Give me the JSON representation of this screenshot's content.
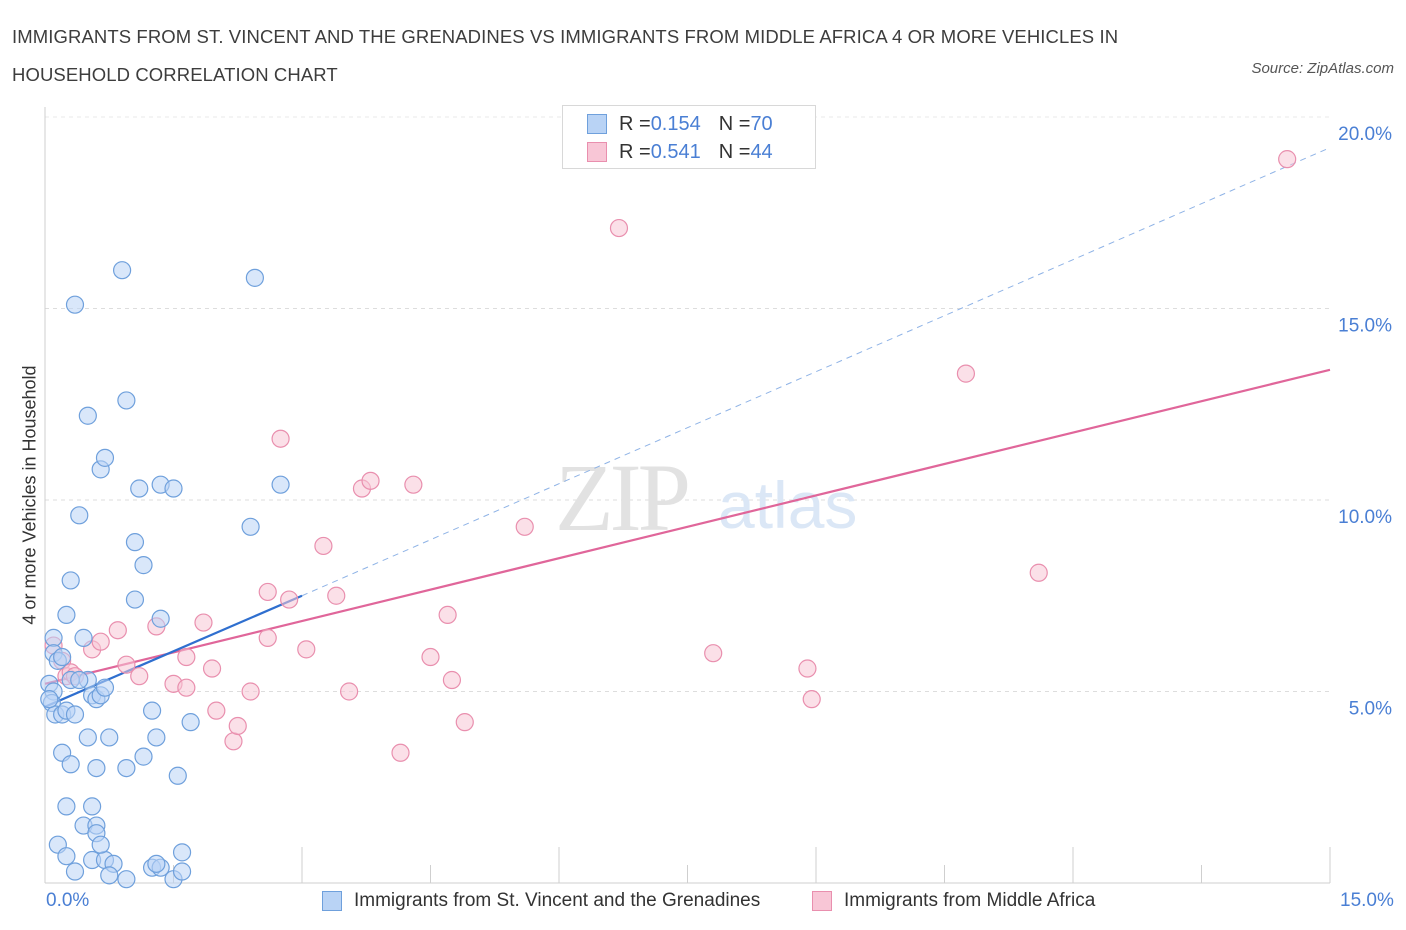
{
  "title": "IMMIGRANTS FROM ST. VINCENT AND THE GRENADINES VS IMMIGRANTS FROM MIDDLE AFRICA 4 OR MORE VEHICLES IN HOUSEHOLD CORRELATION CHART",
  "source": "Source: ZipAtlas.com",
  "watermark": {
    "zip": "ZIP",
    "atlas": "atlas"
  },
  "colors": {
    "blue_fill": "#b9d3f5",
    "blue_stroke": "#6fa0dc",
    "blue_line": "#2f6fcf",
    "pink_fill": "#f8c6d6",
    "pink_stroke": "#e98fae",
    "pink_line": "#e0669a",
    "tick_text": "#4a7fd4",
    "grid": "#dddddd"
  },
  "legend_top": [
    {
      "r_label": "R = ",
      "r_value": "0.154",
      "n_label": "N = ",
      "n_value": "70"
    },
    {
      "r_label": "R = ",
      "r_value": "0.541",
      "n_label": "N = ",
      "n_value": "44"
    }
  ],
  "chart_data": {
    "type": "scatter",
    "xlabel": "",
    "ylabel": "4 or more Vehicles in Household",
    "xlim": [
      0,
      15
    ],
    "ylim": [
      0,
      20
    ],
    "x_tick_labels": [
      "0.0%",
      "15.0%"
    ],
    "y_ticks": [
      5,
      10,
      15,
      20
    ],
    "y_tick_labels": [
      "5.0%",
      "10.0%",
      "15.0%",
      "20.0%"
    ],
    "grid": true,
    "legend": "bottom",
    "series": [
      {
        "name": "Immigrants from St. Vincent and the Grenadines",
        "R": 0.154,
        "N": 70,
        "trend": {
          "x0": 0,
          "y0": 4.6,
          "x1": 3.0,
          "y1": 7.5,
          "dashed_to_x": 15,
          "dashed_to_y": 19.2
        },
        "points": [
          [
            0.1,
            6.4
          ],
          [
            0.1,
            6.0
          ],
          [
            0.15,
            5.8
          ],
          [
            0.2,
            5.9
          ],
          [
            0.05,
            5.2
          ],
          [
            0.1,
            5.0
          ],
          [
            0.08,
            4.7
          ],
          [
            0.12,
            4.4
          ],
          [
            0.2,
            4.4
          ],
          [
            0.25,
            4.5
          ],
          [
            0.3,
            5.3
          ],
          [
            0.35,
            4.4
          ],
          [
            0.45,
            6.4
          ],
          [
            0.5,
            5.3
          ],
          [
            0.55,
            4.9
          ],
          [
            0.6,
            4.8
          ],
          [
            0.65,
            4.9
          ],
          [
            0.7,
            5.1
          ],
          [
            0.25,
            7.0
          ],
          [
            0.3,
            7.9
          ],
          [
            0.35,
            15.1
          ],
          [
            0.5,
            12.2
          ],
          [
            0.65,
            10.8
          ],
          [
            0.7,
            11.1
          ],
          [
            0.9,
            16.0
          ],
          [
            0.95,
            12.6
          ],
          [
            1.05,
            8.9
          ],
          [
            1.1,
            10.3
          ],
          [
            1.05,
            7.4
          ],
          [
            1.15,
            8.3
          ],
          [
            1.35,
            10.4
          ],
          [
            1.5,
            10.3
          ],
          [
            1.35,
            6.9
          ],
          [
            1.7,
            4.2
          ],
          [
            2.45,
            15.8
          ],
          [
            2.4,
            9.3
          ],
          [
            2.75,
            10.4
          ],
          [
            0.4,
            9.6
          ],
          [
            0.2,
            3.4
          ],
          [
            0.5,
            3.8
          ],
          [
            0.3,
            3.1
          ],
          [
            0.6,
            3.0
          ],
          [
            0.75,
            3.8
          ],
          [
            0.95,
            3.0
          ],
          [
            1.3,
            3.8
          ],
          [
            1.15,
            3.3
          ],
          [
            1.55,
            2.8
          ],
          [
            1.25,
            4.5
          ],
          [
            0.25,
            2.0
          ],
          [
            0.55,
            2.0
          ],
          [
            0.45,
            1.5
          ],
          [
            0.6,
            1.5
          ],
          [
            0.15,
            1.0
          ],
          [
            0.6,
            1.3
          ],
          [
            0.25,
            0.7
          ],
          [
            0.55,
            0.6
          ],
          [
            0.7,
            0.6
          ],
          [
            0.8,
            0.5
          ],
          [
            0.35,
            0.3
          ],
          [
            0.75,
            0.2
          ],
          [
            0.95,
            0.1
          ],
          [
            1.25,
            0.4
          ],
          [
            1.35,
            0.4
          ],
          [
            1.5,
            0.1
          ],
          [
            1.6,
            0.3
          ],
          [
            1.6,
            0.8
          ],
          [
            1.3,
            0.5
          ],
          [
            0.65,
            1.0
          ],
          [
            0.4,
            5.3
          ],
          [
            0.05,
            4.8
          ]
        ]
      },
      {
        "name": "Immigrants from Middle Africa",
        "R": 0.541,
        "N": 44,
        "trend": {
          "x0": 0,
          "y0": 5.2,
          "x1": 15,
          "y1": 13.4
        },
        "points": [
          [
            0.1,
            6.2
          ],
          [
            0.2,
            5.8
          ],
          [
            0.25,
            5.4
          ],
          [
            0.3,
            5.5
          ],
          [
            0.35,
            5.4
          ],
          [
            0.55,
            6.1
          ],
          [
            0.65,
            6.3
          ],
          [
            0.85,
            6.6
          ],
          [
            0.95,
            5.7
          ],
          [
            1.1,
            5.4
          ],
          [
            1.3,
            6.7
          ],
          [
            1.5,
            5.2
          ],
          [
            1.65,
            5.1
          ],
          [
            1.65,
            5.9
          ],
          [
            1.85,
            6.8
          ],
          [
            1.95,
            5.6
          ],
          [
            2.0,
            4.5
          ],
          [
            2.2,
            3.7
          ],
          [
            2.25,
            4.1
          ],
          [
            2.4,
            5.0
          ],
          [
            2.6,
            6.4
          ],
          [
            2.6,
            7.6
          ],
          [
            2.85,
            7.4
          ],
          [
            3.05,
            6.1
          ],
          [
            3.25,
            8.8
          ],
          [
            3.4,
            7.5
          ],
          [
            3.55,
            5.0
          ],
          [
            3.7,
            10.3
          ],
          [
            3.8,
            10.5
          ],
          [
            4.3,
            10.4
          ],
          [
            4.15,
            3.4
          ],
          [
            4.5,
            5.9
          ],
          [
            4.7,
            7.0
          ],
          [
            4.75,
            5.3
          ],
          [
            4.9,
            4.2
          ],
          [
            5.6,
            9.3
          ],
          [
            6.7,
            17.1
          ],
          [
            7.8,
            6.0
          ],
          [
            8.9,
            5.6
          ],
          [
            8.95,
            4.8
          ],
          [
            10.75,
            13.3
          ],
          [
            11.6,
            8.1
          ],
          [
            14.5,
            18.9
          ],
          [
            2.75,
            11.6
          ]
        ]
      }
    ]
  },
  "legend_bottom": [
    {
      "label": "Immigrants from St. Vincent and the Grenadines"
    },
    {
      "label": "Immigrants from Middle Africa"
    }
  ]
}
